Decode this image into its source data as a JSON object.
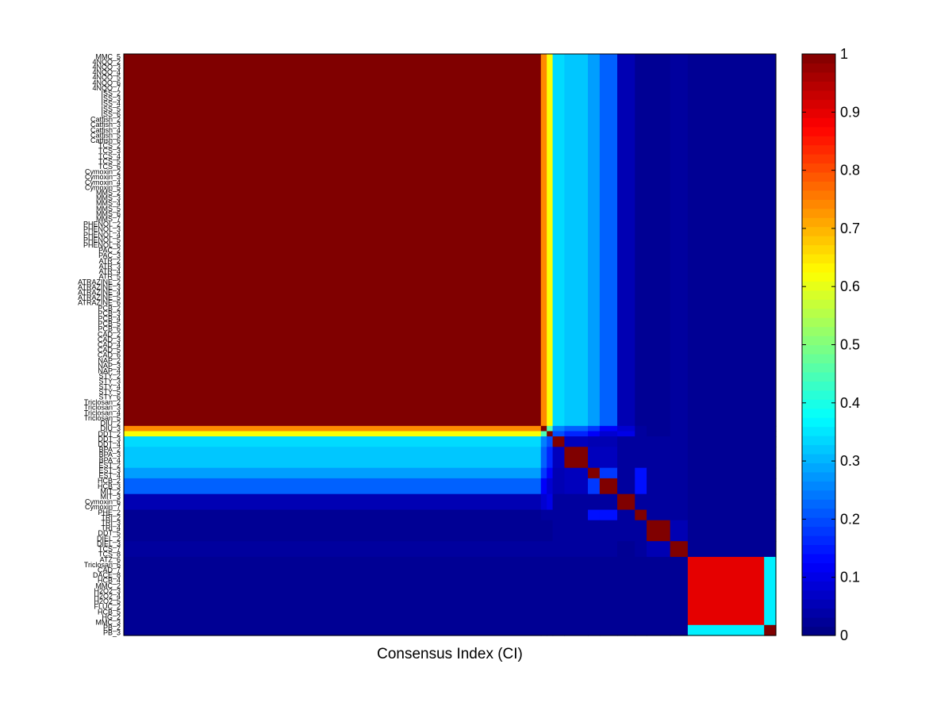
{
  "chart_data": {
    "type": "heatmap",
    "title": "",
    "xlabel": "Consensus Index (CI)",
    "ylabel": "",
    "n": 111,
    "row_labels": [
      "MMC_5",
      "4NQO_2",
      "4NQO_3",
      "4NQO_4",
      "4NQO_5",
      "4NQO_6",
      "4NQO_7",
      "ISS_2",
      "ISS_3",
      "ISS_4",
      "ISS_5",
      "ISS_6",
      "Catfish_2",
      "Catfish_3",
      "Catfish_4",
      "Catfish_5",
      "Catfish_6",
      "TCS_2",
      "TCS_3",
      "TCS_4",
      "TCS_5",
      "TCS_6",
      "Cymoxin_2",
      "Cymoxin_3",
      "Cymoxin_4",
      "Cymoxin_5",
      "MMS_2",
      "MMS_3",
      "MMS_4",
      "MMS_5",
      "MMS_6",
      "MMS_7",
      "PHENOL_2",
      "PHENOL_3",
      "PHENOL_4",
      "PHENOL_5",
      "PHENOL_6",
      "PAC_2",
      "PAC_3",
      "ATR_2",
      "ATR_3",
      "ATR_4",
      "ATR_5",
      "ATRAZINE_2",
      "ATRAZINE_3",
      "ATRAZINE_4",
      "ATRAZINE_5",
      "ATRAZINE_6",
      "PCB_2",
      "PCB_3",
      "PCB_4",
      "PCB_5",
      "PCB_6",
      "CAD_2",
      "CAD_3",
      "CAD_4",
      "CAD_5",
      "CAD_6",
      "NAP_2",
      "NAP_3",
      "NAP_4",
      "STY_2",
      "STY_3",
      "STY_4",
      "STY_5",
      "STY_6",
      "Triclosan_2",
      "Triclosan_3",
      "Triclosan_4",
      "Triclosan_5",
      "DIU_2",
      "DIU_3",
      "DDT_2",
      "DDT_3",
      "DDT_4",
      "BPA_2",
      "BPA_3",
      "BPA_4",
      "EST_2",
      "EST_3",
      "EST_4",
      "HCB_2",
      "HCB_3",
      "MIT_2",
      "MIT_3",
      "Cymoxin_6",
      "Cymoxin_7",
      "PHE_2",
      "TRI_2",
      "TRI_3",
      "TRI_4",
      "DDT_5",
      "DIEL_2",
      "DIEL_3",
      "TCS_7",
      "TCS_8",
      "ATZ_6",
      "Triclosan_6",
      "CAD_7",
      "DACE_8",
      "HCB_4",
      "MMC_2",
      "H2O2_3",
      "H2O2_4",
      "H2O2_5",
      "FLUC_2",
      "HCB_5",
      "HG_2",
      "MMC_3",
      "PB_2",
      "PB_3"
    ],
    "blocks": [
      {
        "name": "A",
        "range": [
          0,
          70
        ]
      },
      {
        "name": "B",
        "range": [
          71,
          71
        ]
      },
      {
        "name": "C",
        "range": [
          72,
          72
        ]
      },
      {
        "name": "D",
        "range": [
          73,
          74
        ]
      },
      {
        "name": "E",
        "range": [
          75,
          78
        ]
      },
      {
        "name": "F",
        "range": [
          79,
          80
        ]
      },
      {
        "name": "G",
        "range": [
          81,
          83
        ]
      },
      {
        "name": "H",
        "range": [
          84,
          86
        ]
      },
      {
        "name": "I",
        "range": [
          87,
          88
        ]
      },
      {
        "name": "J",
        "range": [
          89,
          92
        ]
      },
      {
        "name": "K",
        "range": [
          93,
          95
        ]
      },
      {
        "name": "L",
        "range": [
          96,
          108
        ]
      },
      {
        "name": "M",
        "range": [
          109,
          110
        ]
      }
    ],
    "block_matrix": [
      [
        1.0,
        0.74,
        0.62,
        0.34,
        0.32,
        0.28,
        0.22,
        0.05,
        0.02,
        0.02,
        0.03,
        0.02,
        0.02
      ],
      [
        0.74,
        1.0,
        0.45,
        0.25,
        0.22,
        0.18,
        0.12,
        0.08,
        0.03,
        0.02,
        0.03,
        0.02,
        0.02
      ],
      [
        0.62,
        0.45,
        1.0,
        0.2,
        0.16,
        0.12,
        0.08,
        0.1,
        0.03,
        0.02,
        0.03,
        0.02,
        0.02
      ],
      [
        0.34,
        0.25,
        0.2,
        1.0,
        0.06,
        0.05,
        0.05,
        0.03,
        0.03,
        0.03,
        0.03,
        0.02,
        0.02
      ],
      [
        0.32,
        0.22,
        0.16,
        0.06,
        1.0,
        0.06,
        0.06,
        0.03,
        0.03,
        0.03,
        0.03,
        0.02,
        0.02
      ],
      [
        0.28,
        0.18,
        0.12,
        0.05,
        0.06,
        1.0,
        0.18,
        0.03,
        0.14,
        0.03,
        0.03,
        0.02,
        0.02
      ],
      [
        0.22,
        0.12,
        0.08,
        0.05,
        0.06,
        0.18,
        1.0,
        0.03,
        0.14,
        0.03,
        0.03,
        0.02,
        0.02
      ],
      [
        0.05,
        0.08,
        0.1,
        0.03,
        0.03,
        0.03,
        0.03,
        1.0,
        0.03,
        0.03,
        0.03,
        0.02,
        0.02
      ],
      [
        0.02,
        0.03,
        0.03,
        0.03,
        0.03,
        0.14,
        0.14,
        0.03,
        1.0,
        0.03,
        0.03,
        0.02,
        0.02
      ],
      [
        0.02,
        0.02,
        0.02,
        0.03,
        0.03,
        0.03,
        0.03,
        0.03,
        0.03,
        1.0,
        0.05,
        0.02,
        0.02
      ],
      [
        0.03,
        0.03,
        0.03,
        0.03,
        0.03,
        0.03,
        0.03,
        0.02,
        0.03,
        0.05,
        1.0,
        0.02,
        0.02
      ],
      [
        0.02,
        0.02,
        0.02,
        0.02,
        0.02,
        0.02,
        0.02,
        0.02,
        0.02,
        0.02,
        0.02,
        0.9,
        0.36
      ],
      [
        0.02,
        0.02,
        0.02,
        0.02,
        0.02,
        0.02,
        0.02,
        0.02,
        0.02,
        0.02,
        0.02,
        0.36,
        1.0
      ]
    ],
    "colorbar": {
      "colormap": "jet",
      "range": [
        0,
        1
      ],
      "ticks": [
        "0",
        "0.1",
        "0.2",
        "0.3",
        "0.4",
        "0.5",
        "0.6",
        "0.7",
        "0.8",
        "0.9",
        "1"
      ]
    },
    "grid": false,
    "legend": "colorbar-right"
  }
}
